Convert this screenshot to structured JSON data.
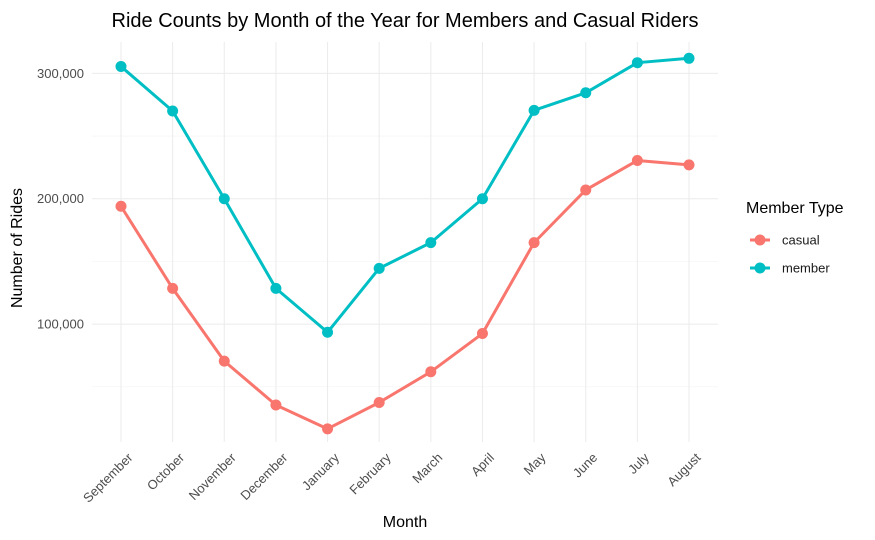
{
  "chart_data": {
    "type": "line",
    "title": "Ride Counts by Month of the Year for Members and Casual Riders",
    "xlabel": "Month",
    "ylabel": "Number of Rides",
    "categories": [
      "September",
      "October",
      "November",
      "December",
      "January",
      "February",
      "March",
      "April",
      "May",
      "June",
      "July",
      "August"
    ],
    "series": [
      {
        "name": "casual",
        "color": "#F8766D",
        "values": [
          194000,
          128500,
          70500,
          35500,
          16500,
          37500,
          62000,
          92500,
          165000,
          207000,
          230500,
          227000
        ]
      },
      {
        "name": "member",
        "color": "#00BFC4",
        "values": [
          305500,
          270000,
          200000,
          128500,
          93500,
          144500,
          165000,
          200000,
          270500,
          284500,
          308500,
          312000
        ]
      }
    ],
    "yticks": [
      100000,
      200000,
      300000
    ],
    "ytick_labels": [
      "100,000",
      "200,000",
      "300,000"
    ],
    "ylim": [
      6000,
      325000
    ],
    "grid": true,
    "legend": {
      "title": "Member Type",
      "position": "right"
    }
  }
}
